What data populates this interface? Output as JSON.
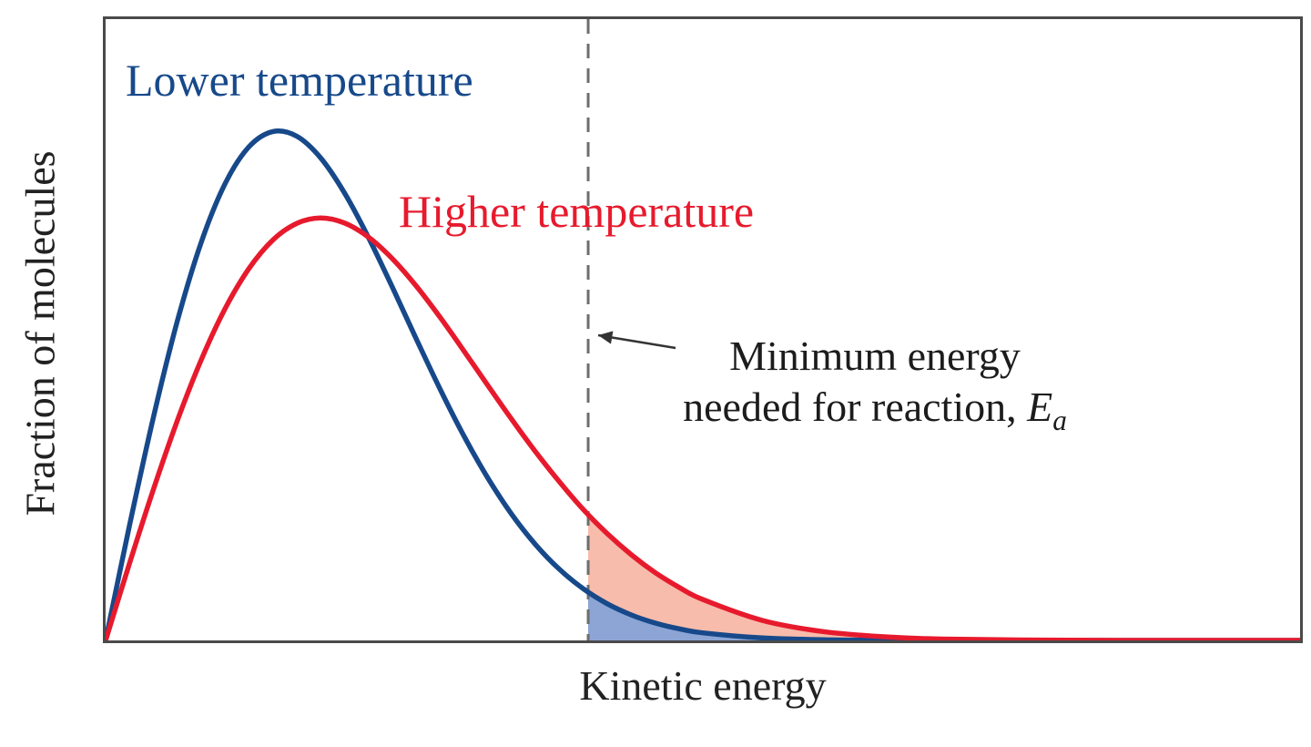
{
  "figure": {
    "background": "#ffffff",
    "frame_color": "#4a4a4a"
  },
  "chart_data": {
    "type": "line",
    "title": "",
    "xlabel": "Kinetic energy",
    "ylabel": "Fraction of molecules",
    "grid": false,
    "x_axis": {
      "range_normalized": [
        0,
        1
      ],
      "tick_labels": "none"
    },
    "y_axis": {
      "range_normalized": [
        0,
        1
      ],
      "tick_labels": "none"
    },
    "x_normalized": [
      0,
      0.02,
      0.04,
      0.06,
      0.08,
      0.1,
      0.12,
      0.14,
      0.16,
      0.18,
      0.2,
      0.22,
      0.24,
      0.26,
      0.28,
      0.3,
      0.32,
      0.34,
      0.36,
      0.38,
      0.4,
      0.42,
      0.44,
      0.46,
      0.48,
      0.5,
      0.55,
      0.6,
      0.65,
      0.7,
      0.8,
      0.9,
      1
    ],
    "series": [
      {
        "name": "Lower temperature",
        "color": "#17498a",
        "peak_x": 0.145,
        "peak_height": 0.82,
        "y": [
          0,
          0.1847,
          0.3591,
          0.5136,
          0.6406,
          0.7351,
          0.7945,
          0.819,
          0.8116,
          0.7767,
          0.7202,
          0.6488,
          0.5687,
          0.4857,
          0.4046,
          0.329,
          0.2615,
          0.2029,
          0.1541,
          0.1143,
          0.083,
          0.059,
          0.0411,
          0.028,
          0.0187,
          0.0122,
          0.0039,
          0.0011,
          0.0004,
          0.0001,
          0,
          0,
          0
        ]
      },
      {
        "name": "Higher temperature",
        "color": "#e71a2d",
        "peak_x": 0.18,
        "peak_height": 0.68,
        "y": [
          0,
          0.1238,
          0.243,
          0.3535,
          0.4514,
          0.5339,
          0.5985,
          0.6444,
          0.6713,
          0.68,
          0.6719,
          0.6493,
          0.6145,
          0.5706,
          0.5201,
          0.4659,
          0.4104,
          0.3557,
          0.3035,
          0.2551,
          0.2105,
          0.1718,
          0.1381,
          0.1093,
          0.0855,
          0.0658,
          0.0321,
          0.0144,
          0.006,
          0.0022,
          0.0003,
          0,
          0
        ]
      }
    ],
    "threshold": {
      "x": 0.404,
      "line_style": "dashed",
      "line_color": "#6e6e6e",
      "label_line1": "Minimum energy",
      "label_line2_prefix": "needed for reaction, ",
      "label_symbol": "E",
      "label_symbol_sub": "a"
    },
    "shaded_regions": [
      {
        "series": "Higher temperature",
        "from_x": 0.404,
        "fill": "#f7bcab"
      },
      {
        "series": "Lower temperature",
        "from_x": 0.404,
        "fill": "#8ca5d5"
      }
    ],
    "arrow_color": "#333333",
    "annotation_color": "#1c1c1c"
  }
}
